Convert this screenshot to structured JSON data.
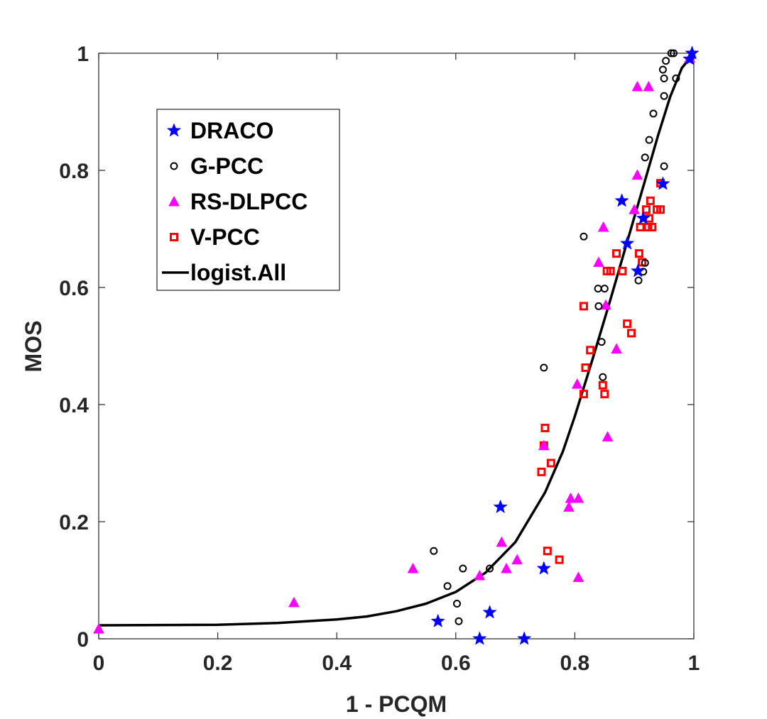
{
  "chart_data": {
    "type": "scatter",
    "title": "",
    "xlabel": "1 - PCQM",
    "ylabel": "MOS",
    "xlim": [
      0,
      1
    ],
    "ylim": [
      0,
      1
    ],
    "xticks": [
      "0",
      "0.2",
      "0.4",
      "0.6",
      "0.8",
      "1"
    ],
    "yticks": [
      "0",
      "0.2",
      "0.4",
      "0.6",
      "0.8",
      "1"
    ],
    "grid": false,
    "legend_position": "upper-left",
    "series": [
      {
        "name": "DRACO",
        "marker": "star",
        "color": "#0000ff",
        "points": [
          [
            0.57,
            0.03
          ],
          [
            0.64,
            0.0
          ],
          [
            0.657,
            0.045
          ],
          [
            0.675,
            0.225
          ],
          [
            0.715,
            0.0
          ],
          [
            0.748,
            0.12
          ],
          [
            0.879,
            0.748
          ],
          [
            0.888,
            0.675
          ],
          [
            0.906,
            0.628
          ],
          [
            0.915,
            0.718
          ],
          [
            0.948,
            0.777
          ],
          [
            0.993,
            0.99
          ],
          [
            0.997,
            1.0
          ]
        ]
      },
      {
        "name": "G-PCC",
        "marker": "circle",
        "color": "#000000",
        "points": [
          [
            0.563,
            0.15
          ],
          [
            0.586,
            0.09
          ],
          [
            0.602,
            0.06
          ],
          [
            0.605,
            0.03
          ],
          [
            0.612,
            0.12
          ],
          [
            0.657,
            0.12
          ],
          [
            0.748,
            0.463
          ],
          [
            0.815,
            0.687
          ],
          [
            0.839,
            0.598
          ],
          [
            0.84,
            0.568
          ],
          [
            0.845,
            0.507
          ],
          [
            0.847,
            0.447
          ],
          [
            0.85,
            0.598
          ],
          [
            0.907,
            0.612
          ],
          [
            0.915,
            0.627
          ],
          [
            0.918,
            0.642
          ],
          [
            0.918,
            0.822
          ],
          [
            0.925,
            0.852
          ],
          [
            0.932,
            0.897
          ],
          [
            0.948,
            0.972
          ],
          [
            0.95,
            0.957
          ],
          [
            0.95,
            0.927
          ],
          [
            0.95,
            0.807
          ],
          [
            0.953,
            0.987
          ],
          [
            0.962,
            1.0
          ],
          [
            0.966,
            1.0
          ],
          [
            0.97,
            0.957
          ]
        ]
      },
      {
        "name": "RS-DLPCC",
        "marker": "triangle",
        "color": "#ff00ff",
        "points": [
          [
            0.0,
            0.017
          ],
          [
            0.328,
            0.062
          ],
          [
            0.528,
            0.12
          ],
          [
            0.64,
            0.108
          ],
          [
            0.677,
            0.165
          ],
          [
            0.685,
            0.12
          ],
          [
            0.703,
            0.135
          ],
          [
            0.748,
            0.33
          ],
          [
            0.79,
            0.225
          ],
          [
            0.793,
            0.24
          ],
          [
            0.804,
            0.435
          ],
          [
            0.806,
            0.24
          ],
          [
            0.806,
            0.105
          ],
          [
            0.84,
            0.643
          ],
          [
            0.848,
            0.703
          ],
          [
            0.852,
            0.57
          ],
          [
            0.855,
            0.345
          ],
          [
            0.87,
            0.495
          ],
          [
            0.9,
            0.733
          ],
          [
            0.905,
            0.943
          ],
          [
            0.905,
            0.792
          ],
          [
            0.924,
            0.943
          ],
          [
            0.993,
            0.992
          ]
        ]
      },
      {
        "name": "V-PCC",
        "marker": "square",
        "color": "#ff0000",
        "points": [
          [
            0.744,
            0.285
          ],
          [
            0.748,
            0.33
          ],
          [
            0.75,
            0.36
          ],
          [
            0.754,
            0.15
          ],
          [
            0.76,
            0.3
          ],
          [
            0.774,
            0.135
          ],
          [
            0.815,
            0.418
          ],
          [
            0.815,
            0.568
          ],
          [
            0.818,
            0.463
          ],
          [
            0.826,
            0.493
          ],
          [
            0.847,
            0.433
          ],
          [
            0.85,
            0.418
          ],
          [
            0.854,
            0.628
          ],
          [
            0.86,
            0.628
          ],
          [
            0.87,
            0.658
          ],
          [
            0.88,
            0.628
          ],
          [
            0.888,
            0.538
          ],
          [
            0.895,
            0.522
          ],
          [
            0.908,
            0.658
          ],
          [
            0.91,
            0.703
          ],
          [
            0.913,
            0.643
          ],
          [
            0.92,
            0.733
          ],
          [
            0.923,
            0.703
          ],
          [
            0.925,
            0.718
          ],
          [
            0.927,
            0.748
          ],
          [
            0.93,
            0.703
          ],
          [
            0.938,
            0.733
          ],
          [
            0.944,
            0.778
          ],
          [
            0.944,
            0.733
          ]
        ]
      }
    ],
    "fit_line": {
      "name": "logist.All",
      "color": "#000000",
      "description": "logistic fit over all codecs",
      "points": [
        [
          0.0,
          0.023
        ],
        [
          0.2,
          0.024
        ],
        [
          0.3,
          0.027
        ],
        [
          0.4,
          0.033
        ],
        [
          0.45,
          0.038
        ],
        [
          0.5,
          0.047
        ],
        [
          0.55,
          0.06
        ],
        [
          0.6,
          0.08
        ],
        [
          0.65,
          0.113
        ],
        [
          0.7,
          0.165
        ],
        [
          0.75,
          0.25
        ],
        [
          0.78,
          0.32
        ],
        [
          0.8,
          0.38
        ],
        [
          0.83,
          0.478
        ],
        [
          0.86,
          0.58
        ],
        [
          0.88,
          0.65
        ],
        [
          0.9,
          0.72
        ],
        [
          0.92,
          0.79
        ],
        [
          0.94,
          0.86
        ],
        [
          0.96,
          0.925
        ],
        [
          0.98,
          0.975
        ],
        [
          1.0,
          1.0
        ]
      ]
    }
  }
}
